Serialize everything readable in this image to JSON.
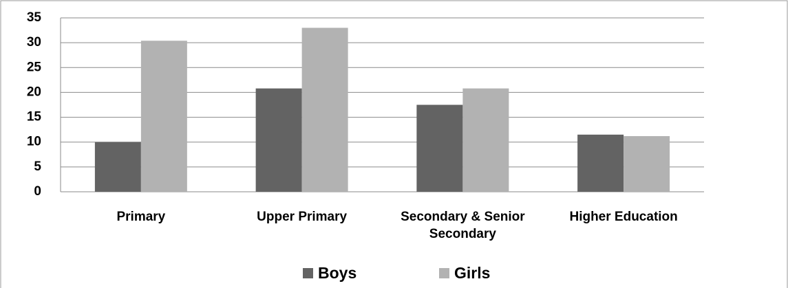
{
  "chart_data": {
    "type": "bar",
    "categories": [
      "Primary",
      "Upper Primary",
      "Secondary & Senior Secondary",
      "Higher Education"
    ],
    "series": [
      {
        "name": "Boys",
        "color": "#636363",
        "values": [
          10,
          20.8,
          17.5,
          11.5
        ]
      },
      {
        "name": "Girls",
        "color": "#b2b2b2",
        "values": [
          30.4,
          33,
          20.8,
          11.2
        ]
      }
    ],
    "ylim": [
      0,
      35
    ],
    "yticks": [
      0,
      5,
      10,
      15,
      20,
      25,
      30,
      35
    ],
    "grid": true,
    "legend": "bottom"
  }
}
